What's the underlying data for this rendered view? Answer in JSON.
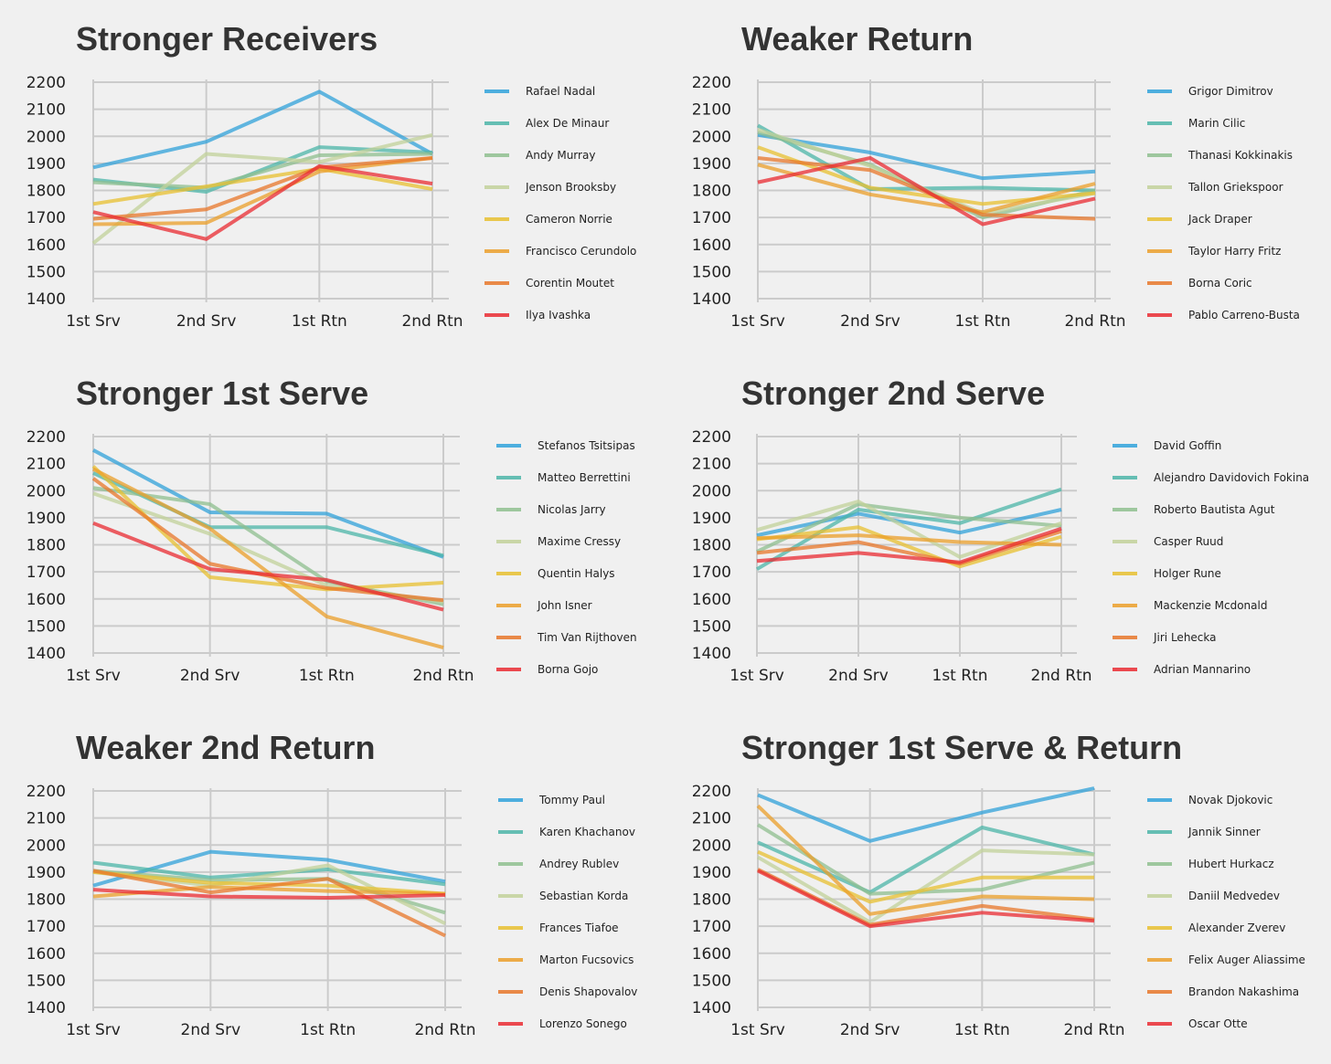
{
  "colors": [
    "#30a2da",
    "#4cb5a8",
    "#8fbf8f",
    "#c2d19a",
    "#e8c030",
    "#eb9f2a",
    "#e8772a",
    "#ea2b32"
  ],
  "chart_data": [
    {
      "type": "line",
      "title": "Stronger Receivers",
      "categories": [
        "1st Srv",
        "2nd Srv",
        "1st Rtn",
        "2nd Rtn"
      ],
      "ylim": [
        1400,
        2200
      ],
      "yticks": [
        1400,
        1500,
        1600,
        1700,
        1800,
        1900,
        2000,
        2100,
        2200
      ],
      "grid": true,
      "legend": "right",
      "series": [
        {
          "name": "Rafael Nadal",
          "values": [
            1885,
            1980,
            2165,
            1935
          ]
        },
        {
          "name": "Alex De Minaur",
          "values": [
            1840,
            1795,
            1960,
            1940
          ]
        },
        {
          "name": "Andy Murray",
          "values": [
            1830,
            1810,
            1930,
            1935
          ]
        },
        {
          "name": "Jenson Brooksby",
          "values": [
            1605,
            1935,
            1905,
            2005
          ]
        },
        {
          "name": "Cameron Norrie",
          "values": [
            1750,
            1815,
            1880,
            1805
          ]
        },
        {
          "name": "Francisco Cerundolo",
          "values": [
            1675,
            1680,
            1870,
            1920
          ]
        },
        {
          "name": "Corentin Moutet",
          "values": [
            1695,
            1730,
            1885,
            1920
          ]
        },
        {
          "name": "Ilya Ivashka",
          "values": [
            1720,
            1620,
            1890,
            1825
          ]
        }
      ]
    },
    {
      "type": "line",
      "title": "Weaker Return",
      "categories": [
        "1st Srv",
        "2nd Srv",
        "1st Rtn",
        "2nd Rtn"
      ],
      "ylim": [
        1400,
        2200
      ],
      "yticks": [
        1400,
        1500,
        1600,
        1700,
        1800,
        1900,
        2000,
        2100,
        2200
      ],
      "grid": true,
      "legend": "right",
      "series": [
        {
          "name": "Grigor Dimitrov",
          "values": [
            2005,
            1940,
            1845,
            1870
          ]
        },
        {
          "name": "Marin Cilic",
          "values": [
            2040,
            1805,
            1810,
            1800
          ]
        },
        {
          "name": "Thanasi Kokkinakis",
          "values": [
            2015,
            1895,
            1700,
            1800
          ]
        },
        {
          "name": "Tallon Griekspoor",
          "values": [
            2025,
            1890,
            1715,
            1790
          ]
        },
        {
          "name": "Jack Draper",
          "values": [
            1960,
            1810,
            1750,
            1790
          ]
        },
        {
          "name": "Taylor Harry Fritz",
          "values": [
            1895,
            1785,
            1720,
            1825
          ]
        },
        {
          "name": "Borna Coric",
          "values": [
            1920,
            1875,
            1710,
            1695
          ]
        },
        {
          "name": "Pablo Carreno-Busta",
          "values": [
            1830,
            1920,
            1675,
            1770
          ]
        }
      ]
    },
    {
      "type": "line",
      "title": "Stronger 1st Serve",
      "categories": [
        "1st Srv",
        "2nd Srv",
        "1st Rtn",
        "2nd Rtn"
      ],
      "ylim": [
        1400,
        2200
      ],
      "yticks": [
        1400,
        1500,
        1600,
        1700,
        1800,
        1900,
        2000,
        2100,
        2200
      ],
      "grid": true,
      "legend": "right",
      "series": [
        {
          "name": "Stefanos Tsitsipas",
          "values": [
            2150,
            1920,
            1915,
            1755
          ]
        },
        {
          "name": "Matteo Berrettini",
          "values": [
            2065,
            1865,
            1865,
            1760
          ]
        },
        {
          "name": "Nicolas Jarry",
          "values": [
            2010,
            1950,
            1665,
            1580
          ]
        },
        {
          "name": "Maxime Cressy",
          "values": [
            1990,
            1840,
            1650,
            1590
          ]
        },
        {
          "name": "Quentin Halys",
          "values": [
            2090,
            1680,
            1635,
            1660
          ]
        },
        {
          "name": "John Isner",
          "values": [
            2080,
            1860,
            1535,
            1420
          ]
        },
        {
          "name": "Tim Van Rijthoven",
          "values": [
            2045,
            1730,
            1640,
            1595
          ]
        },
        {
          "name": "Borna Gojo",
          "values": [
            1880,
            1710,
            1670,
            1560
          ]
        }
      ]
    },
    {
      "type": "line",
      "title": "Stronger 2nd Serve",
      "categories": [
        "1st Srv",
        "2nd Srv",
        "1st Rtn",
        "2nd Rtn"
      ],
      "ylim": [
        1400,
        2200
      ],
      "yticks": [
        1400,
        1500,
        1600,
        1700,
        1800,
        1900,
        2000,
        2100,
        2200
      ],
      "grid": true,
      "legend": "right",
      "series": [
        {
          "name": "David Goffin",
          "values": [
            1835,
            1915,
            1845,
            1930
          ]
        },
        {
          "name": "Alejandro Davidovich Fokina",
          "values": [
            1710,
            1930,
            1880,
            2005
          ]
        },
        {
          "name": "Roberto Bautista Agut",
          "values": [
            1775,
            1950,
            1900,
            1870
          ]
        },
        {
          "name": "Casper Ruud",
          "values": [
            1855,
            1960,
            1755,
            1880
          ]
        },
        {
          "name": "Holger Rune",
          "values": [
            1820,
            1865,
            1720,
            1830
          ]
        },
        {
          "name": "Mackenzie Mcdonald",
          "values": [
            1825,
            1835,
            1810,
            1800
          ]
        },
        {
          "name": "Jiri Lehecka",
          "values": [
            1770,
            1810,
            1730,
            1850
          ]
        },
        {
          "name": "Adrian Mannarino",
          "values": [
            1740,
            1770,
            1735,
            1860
          ]
        }
      ]
    },
    {
      "type": "line",
      "title": "Weaker 2nd Return",
      "categories": [
        "1st Srv",
        "2nd Srv",
        "1st Rtn",
        "2nd Rtn"
      ],
      "ylim": [
        1400,
        2200
      ],
      "yticks": [
        1400,
        1500,
        1600,
        1700,
        1800,
        1900,
        2000,
        2100,
        2200
      ],
      "grid": true,
      "legend": "right",
      "series": [
        {
          "name": "Tommy Paul",
          "values": [
            1850,
            1975,
            1945,
            1865
          ]
        },
        {
          "name": "Karen Khachanov",
          "values": [
            1935,
            1880,
            1910,
            1855
          ]
        },
        {
          "name": "Andrey Rublev",
          "values": [
            1905,
            1870,
            1875,
            1750
          ]
        },
        {
          "name": "Sebastian Korda",
          "values": [
            1900,
            1850,
            1925,
            1710
          ]
        },
        {
          "name": "Frances Tiafoe",
          "values": [
            1900,
            1860,
            1850,
            1820
          ]
        },
        {
          "name": "Marton Fucsovics",
          "values": [
            1810,
            1845,
            1830,
            1820
          ]
        },
        {
          "name": "Denis Shapovalov",
          "values": [
            1905,
            1825,
            1875,
            1665
          ]
        },
        {
          "name": "Lorenzo Sonego",
          "values": [
            1835,
            1810,
            1805,
            1815
          ]
        }
      ]
    },
    {
      "type": "line",
      "title": "Stronger 1st Serve & Return",
      "categories": [
        "1st Srv",
        "2nd Srv",
        "1st Rtn",
        "2nd Rtn"
      ],
      "ylim": [
        1400,
        2200
      ],
      "yticks": [
        1400,
        1500,
        1600,
        1700,
        1800,
        1900,
        2000,
        2100,
        2200
      ],
      "grid": true,
      "legend": "right",
      "series": [
        {
          "name": "Novak Djokovic",
          "values": [
            2185,
            2015,
            2120,
            2210
          ]
        },
        {
          "name": "Jannik Sinner",
          "values": [
            2010,
            1825,
            2065,
            1965
          ]
        },
        {
          "name": "Hubert Hurkacz",
          "values": [
            2075,
            1820,
            1835,
            1935
          ]
        },
        {
          "name": "Daniil Medvedev",
          "values": [
            1955,
            1715,
            1980,
            1965
          ]
        },
        {
          "name": "Alexander Zverev",
          "values": [
            1975,
            1790,
            1880,
            1880
          ]
        },
        {
          "name": "Felix Auger Aliassime",
          "values": [
            2145,
            1745,
            1810,
            1800
          ]
        },
        {
          "name": "Brandon Nakashima",
          "values": [
            1910,
            1705,
            1775,
            1725
          ]
        },
        {
          "name": "Oscar Otte",
          "values": [
            1905,
            1700,
            1750,
            1720
          ]
        }
      ]
    }
  ]
}
